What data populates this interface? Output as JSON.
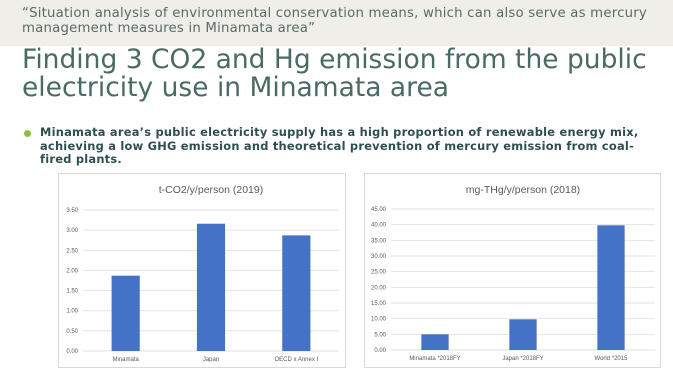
{
  "slide": {
    "subtitle": "“Situation analysis of environmental conservation means, which can also serve as mercury management measures in Minamata area”",
    "title": "Finding 3 CO2 and Hg emission from the public electricity use in Minamata area",
    "bullet": "Minamata area’s public electricity supply has a high proportion of renewable energy mix, achieving a low GHG emission and theoretical prevention of mercury emission from coal-fired plants."
  },
  "colors": {
    "bar": "#4472c4",
    "gridline": "#d9d9d9",
    "bullet_dot": "#8bbf3f"
  },
  "chart_data": [
    {
      "type": "bar",
      "title": "t-CO2/y/person (2019)",
      "categories": [
        "Minamata",
        "Japan",
        "OECD x Annex I"
      ],
      "values": [
        1.87,
        3.16,
        2.87
      ],
      "ylim": [
        0,
        3.5
      ],
      "yticks": [
        "0.00",
        "0.50",
        "1.00",
        "1.50",
        "2.00",
        "2.50",
        "3.00",
        "3.50"
      ],
      "grid": true,
      "xlabel": "",
      "ylabel": ""
    },
    {
      "type": "bar",
      "title": "mg-THg/y/person (2018)",
      "categories": [
        "Minamata *2018FY",
        "Japan *2018FY",
        "World *2015"
      ],
      "values": [
        5.0,
        9.8,
        39.8
      ],
      "ylim": [
        0,
        45
      ],
      "yticks": [
        "0.00",
        "5.00",
        "10.00",
        "15.00",
        "20.00",
        "25.00",
        "30.00",
        "35.00",
        "40.00",
        "45.00"
      ],
      "grid": true,
      "xlabel": "",
      "ylabel": ""
    }
  ]
}
